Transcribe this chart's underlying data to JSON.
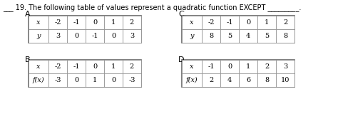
{
  "title": "___ 19. The following table of values represent a quadratic function EXCEPT _________.",
  "A_label": "A.",
  "B_label": "B.",
  "C_label": "C.",
  "D_label": "D.",
  "tableA": {
    "row1": [
      "x",
      "-2",
      "-1",
      "0",
      "1",
      "2"
    ],
    "row2": [
      "y",
      "3",
      "0",
      "-1",
      "0",
      "3"
    ]
  },
  "tableB": {
    "row1": [
      "x",
      "-2",
      "-1",
      "0",
      "1",
      "2"
    ],
    "row2": [
      "f(x)",
      "-3",
      "0",
      "1",
      "0",
      "-3"
    ]
  },
  "tableC": {
    "row1": [
      "x",
      "-2",
      "-1",
      "0",
      "1",
      "2"
    ],
    "row2": [
      "y",
      "8",
      "5",
      "4",
      "5",
      "8"
    ]
  },
  "tableD": {
    "row1": [
      "x",
      "-1",
      "0",
      "1",
      "2",
      "3"
    ],
    "row2": [
      "f(x)",
      "2",
      "4",
      "6",
      "8",
      "10"
    ]
  },
  "bg_color": "#ffffff",
  "text_color": "#000000",
  "cell_edge_color": "#888888",
  "outer_edge_color": "#666666",
  "font_size": 7,
  "label_font_size": 8,
  "title_font_size": 7
}
